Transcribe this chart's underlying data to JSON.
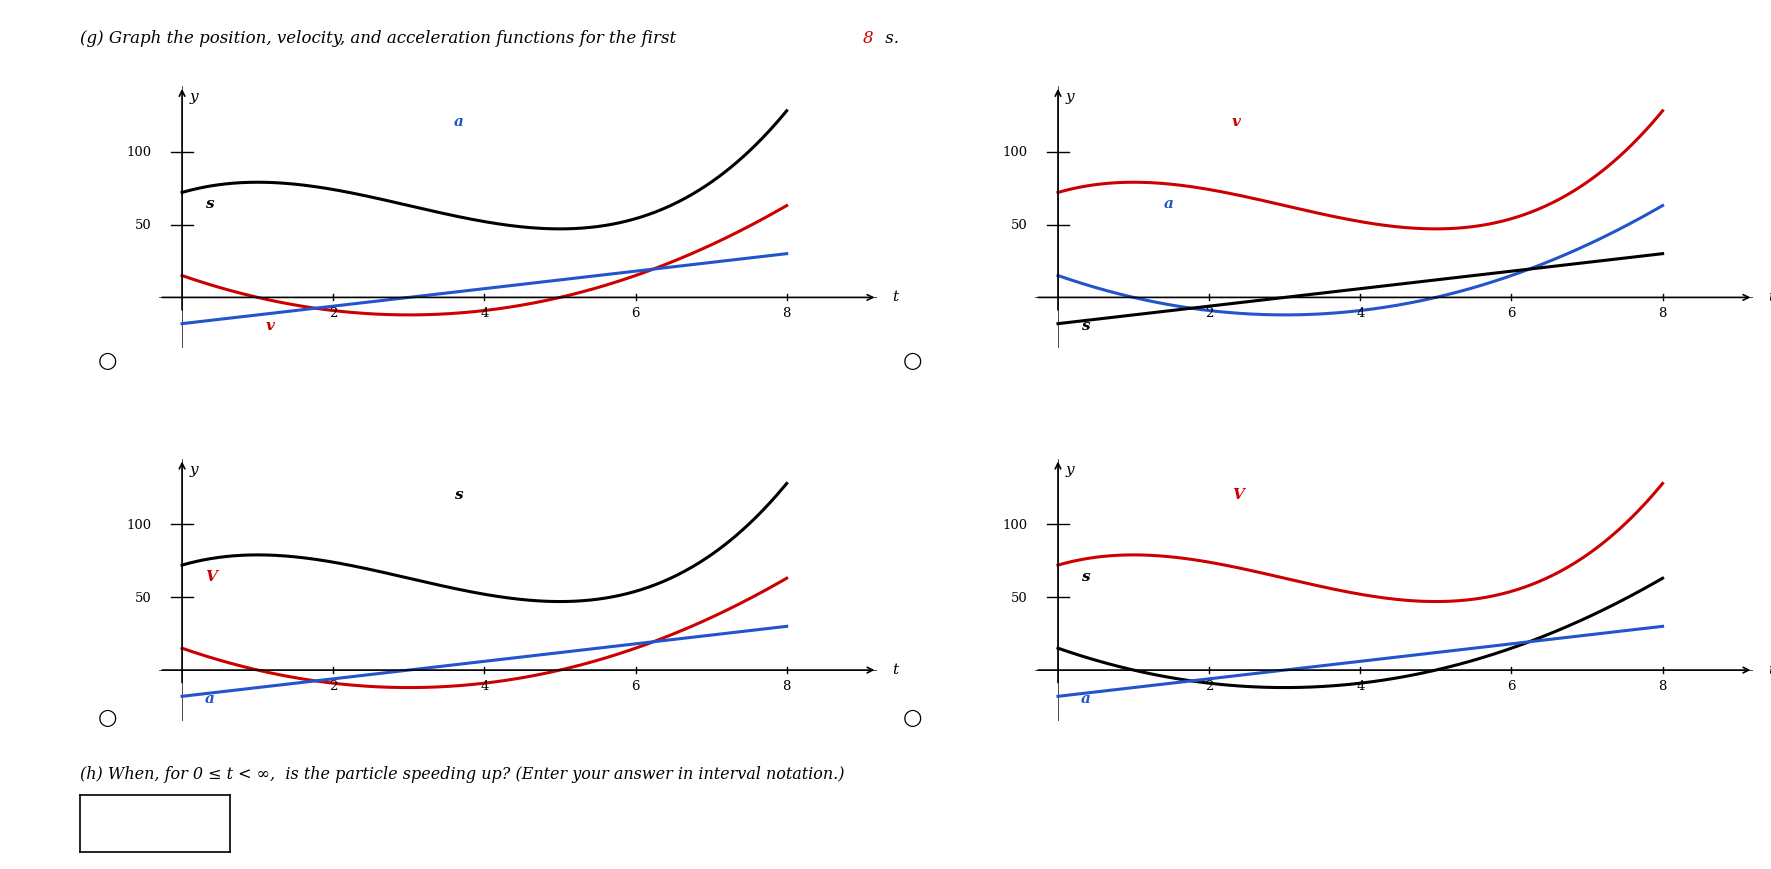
{
  "bg_color": "white",
  "xlim": [
    -0.3,
    9.2
  ],
  "ylim": [
    -35,
    145
  ],
  "xticks": [
    2,
    4,
    6,
    8
  ],
  "yticks": [
    50,
    100
  ],
  "s_color": "#000000",
  "v_color": "#cc0000",
  "a_color": "#2255cc",
  "lw": 2.2,
  "title_prefix": "(g) Graph the position, velocity, and acceleration functions for the first ",
  "title_num": "8",
  "title_suffix": " s.",
  "footer": "(h) When, for 0 ≤ t < ∞,  is the particle speeding up? (Enter your answer in interval notation.)"
}
